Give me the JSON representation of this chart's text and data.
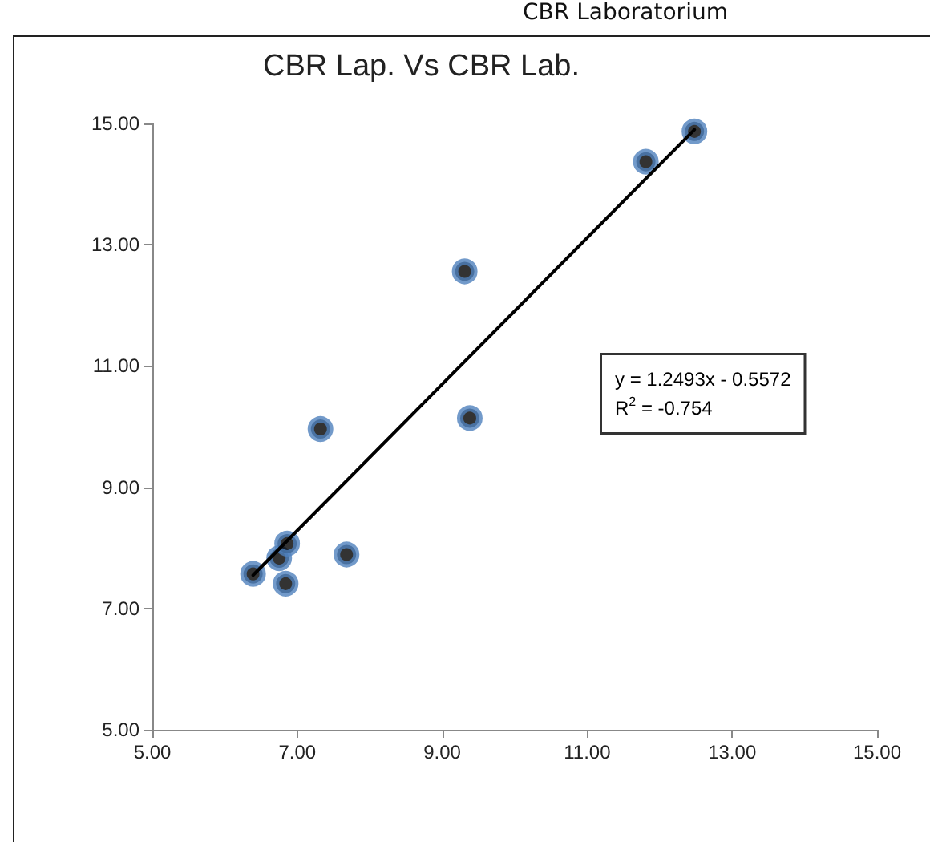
{
  "chart_data": {
    "type": "scatter",
    "title": "CBR Lap. Vs CBR Lab.",
    "annotations": [
      "CBR Laboratorium",
      "y = 1.2493x - 0.5572",
      "R$^{2}$ = -0.754"
    ],
    "series": [
      {
        "color": "#4f81bd",
        "marker": "circle",
        "x": [
          6.39,
          6.75,
          6.86,
          6.84,
          7.32,
          7.68,
          9.31,
          9.38,
          11.81,
          12.48
        ],
        "values": [
          7.57,
          7.83,
          8.07,
          7.41,
          9.96,
          7.89,
          12.56,
          10.14,
          14.37,
          14.87
        ]
      },
      {
        "type": "line",
        "marker": "none",
        "color": "#000000",
        "x": [
          6.39,
          12.48
        ],
        "values": [
          7.55,
          14.9
        ]
      }
    ],
    "xlim": [
      5,
      15
    ],
    "ylim": [
      5,
      15
    ],
    "xticks": [
      {
        "value": 5,
        "label": "5.00"
      },
      {
        "value": 7,
        "label": "7.00"
      },
      {
        "value": 9,
        "label": "9.00"
      },
      {
        "value": 11,
        "label": "11.00"
      },
      {
        "value": 13,
        "label": "13.00"
      },
      {
        "value": 15,
        "label": "15.00"
      }
    ],
    "yticks": [
      {
        "value": 5,
        "label": "5.00"
      },
      {
        "value": 7,
        "label": "7.00"
      },
      {
        "value": 9,
        "label": "9.00"
      },
      {
        "value": 11,
        "label": "11.00"
      },
      {
        "value": 13,
        "label": "13.00"
      },
      {
        "value": 15,
        "label": "15.00"
      }
    ],
    "grid": false
  }
}
